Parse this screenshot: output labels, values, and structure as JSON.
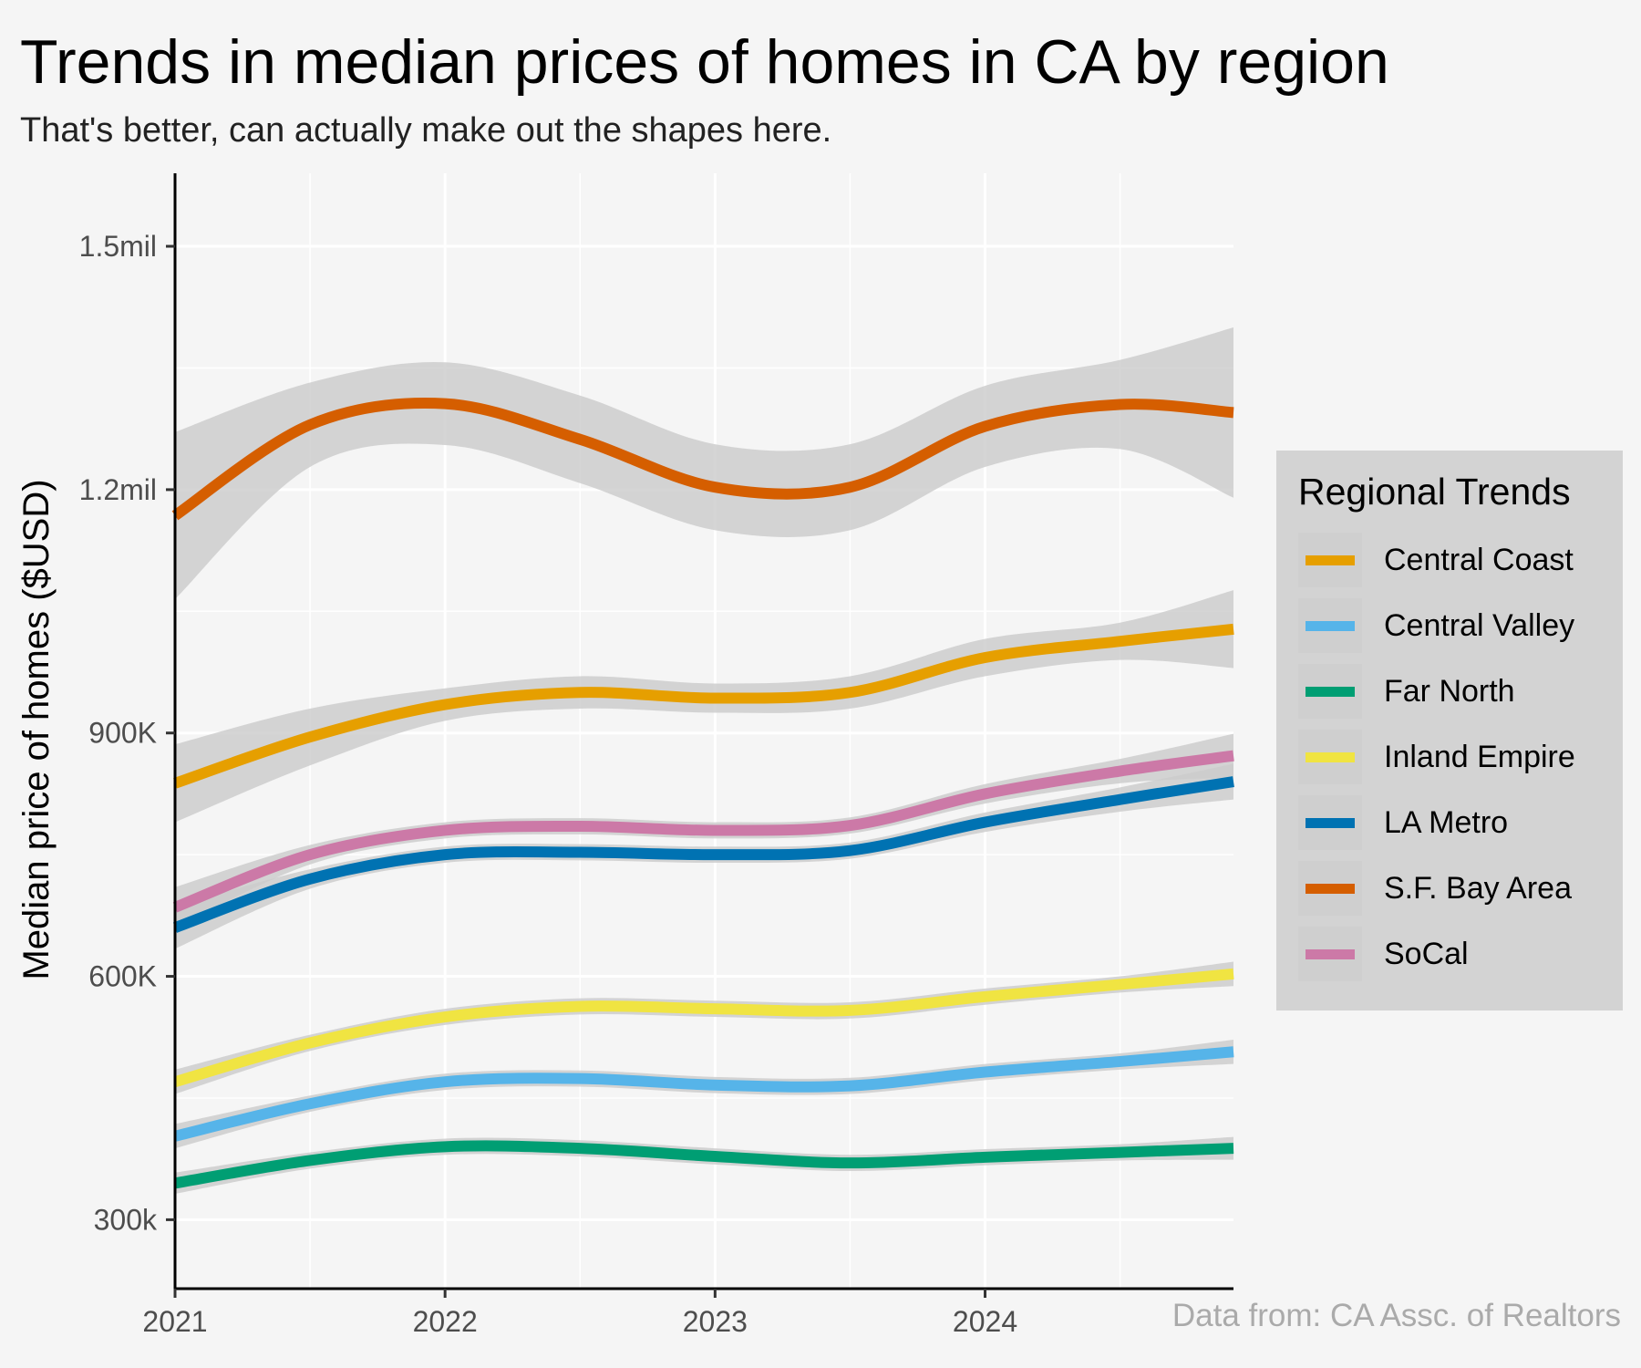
{
  "page": {
    "title": "Trends in median prices of homes in CA by region",
    "subtitle": "That's better, can actually make out the shapes here.",
    "caption": "Data from:  CA Assc. of Realtors"
  },
  "legend": {
    "title": "Regional Trends",
    "items": [
      {
        "label": "Central Coast",
        "color": "#e69f00"
      },
      {
        "label": "Central Valley",
        "color": "#56b4e9"
      },
      {
        "label": "Far North",
        "color": "#009e73"
      },
      {
        "label": "Inland Empire",
        "color": "#f0e442"
      },
      {
        "label": "LA Metro",
        "color": "#0072b2"
      },
      {
        "label": "S.F. Bay Area",
        "color": "#d55e00"
      },
      {
        "label": "SoCal",
        "color": "#cc79a7"
      }
    ]
  },
  "chart_data": {
    "type": "line",
    "smoothed": true,
    "confidence_band": true,
    "band_color": "#cccccc",
    "grid": true,
    "legend_position": "right",
    "title": "Trends in median prices of homes in CA by region",
    "subtitle": "That's better, can actually make out the shapes here.",
    "xlabel": "",
    "ylabel": "Median price of homes ($USD)",
    "xlim": [
      2021.0,
      2024.92
    ],
    "ylim": [
      215000,
      1590000
    ],
    "x_ticks": [
      2021,
      2022,
      2023,
      2024
    ],
    "x_tick_labels": [
      "2021",
      "2022",
      "2023",
      "2024"
    ],
    "y_ticks": [
      300000,
      600000,
      900000,
      1200000,
      1500000
    ],
    "y_tick_labels": [
      "300k",
      "600K",
      "900K",
      "1.2mil",
      "1.5mil"
    ],
    "x": [
      2021.0,
      2021.5,
      2022.0,
      2022.5,
      2023.0,
      2023.5,
      2024.0,
      2024.5,
      2024.92
    ],
    "series": [
      {
        "name": "Central Coast",
        "color": "#e69f00",
        "values": [
          838000,
          895000,
          935000,
          950000,
          943000,
          950000,
          993000,
          1013000,
          1028000
        ],
        "lower": [
          790000,
          860000,
          915000,
          930000,
          925000,
          930000,
          970000,
          990000,
          980000
        ],
        "upper": [
          886000,
          930000,
          955000,
          970000,
          961000,
          970000,
          1016000,
          1036000,
          1076000
        ]
      },
      {
        "name": "Central Valley",
        "color": "#56b4e9",
        "values": [
          403000,
          443000,
          470000,
          474000,
          466000,
          465000,
          482000,
          495000,
          507000
        ],
        "lower": [
          388000,
          433000,
          460000,
          464000,
          456000,
          455000,
          472000,
          485000,
          492000
        ],
        "upper": [
          418000,
          453000,
          480000,
          484000,
          476000,
          475000,
          492000,
          505000,
          522000
        ]
      },
      {
        "name": "Far North",
        "color": "#009e73",
        "values": [
          345000,
          373000,
          390000,
          388000,
          378000,
          370000,
          377000,
          383000,
          388000
        ],
        "lower": [
          332000,
          363000,
          380000,
          378000,
          368000,
          360000,
          367000,
          373000,
          374000
        ],
        "upper": [
          358000,
          383000,
          400000,
          398000,
          388000,
          380000,
          387000,
          393000,
          402000
        ]
      },
      {
        "name": "Inland Empire",
        "color": "#f0e442",
        "values": [
          470000,
          518000,
          550000,
          563000,
          560000,
          558000,
          575000,
          590000,
          603000
        ],
        "lower": [
          455000,
          508000,
          540000,
          553000,
          550000,
          548000,
          565000,
          580000,
          588000
        ],
        "upper": [
          485000,
          528000,
          560000,
          573000,
          570000,
          568000,
          585000,
          600000,
          618000
        ]
      },
      {
        "name": "LA Metro",
        "color": "#0072b2",
        "values": [
          660000,
          720000,
          750000,
          753000,
          750000,
          755000,
          790000,
          818000,
          840000
        ],
        "lower": [
          634000,
          708000,
          740000,
          743000,
          740000,
          745000,
          778000,
          803000,
          818000
        ],
        "upper": [
          686000,
          732000,
          760000,
          763000,
          760000,
          765000,
          802000,
          833000,
          862000
        ]
      },
      {
        "name": "S.F. Bay Area",
        "color": "#d55e00",
        "values": [
          1168000,
          1280000,
          1306000,
          1262000,
          1203000,
          1203000,
          1278000,
          1305000,
          1295000
        ],
        "lower": [
          1065000,
          1228000,
          1255000,
          1208000,
          1150000,
          1150000,
          1228000,
          1250000,
          1190000
        ],
        "upper": [
          1271000,
          1332000,
          1357000,
          1316000,
          1256000,
          1256000,
          1328000,
          1360000,
          1400000
        ]
      },
      {
        "name": "SoCal",
        "color": "#cc79a7",
        "values": [
          685000,
          750000,
          780000,
          785000,
          780000,
          786000,
          825000,
          853000,
          872000
        ],
        "lower": [
          660000,
          738000,
          770000,
          775000,
          770000,
          776000,
          813000,
          838000,
          845000
        ],
        "upper": [
          710000,
          762000,
          790000,
          795000,
          790000,
          796000,
          837000,
          868000,
          899000
        ]
      }
    ]
  }
}
